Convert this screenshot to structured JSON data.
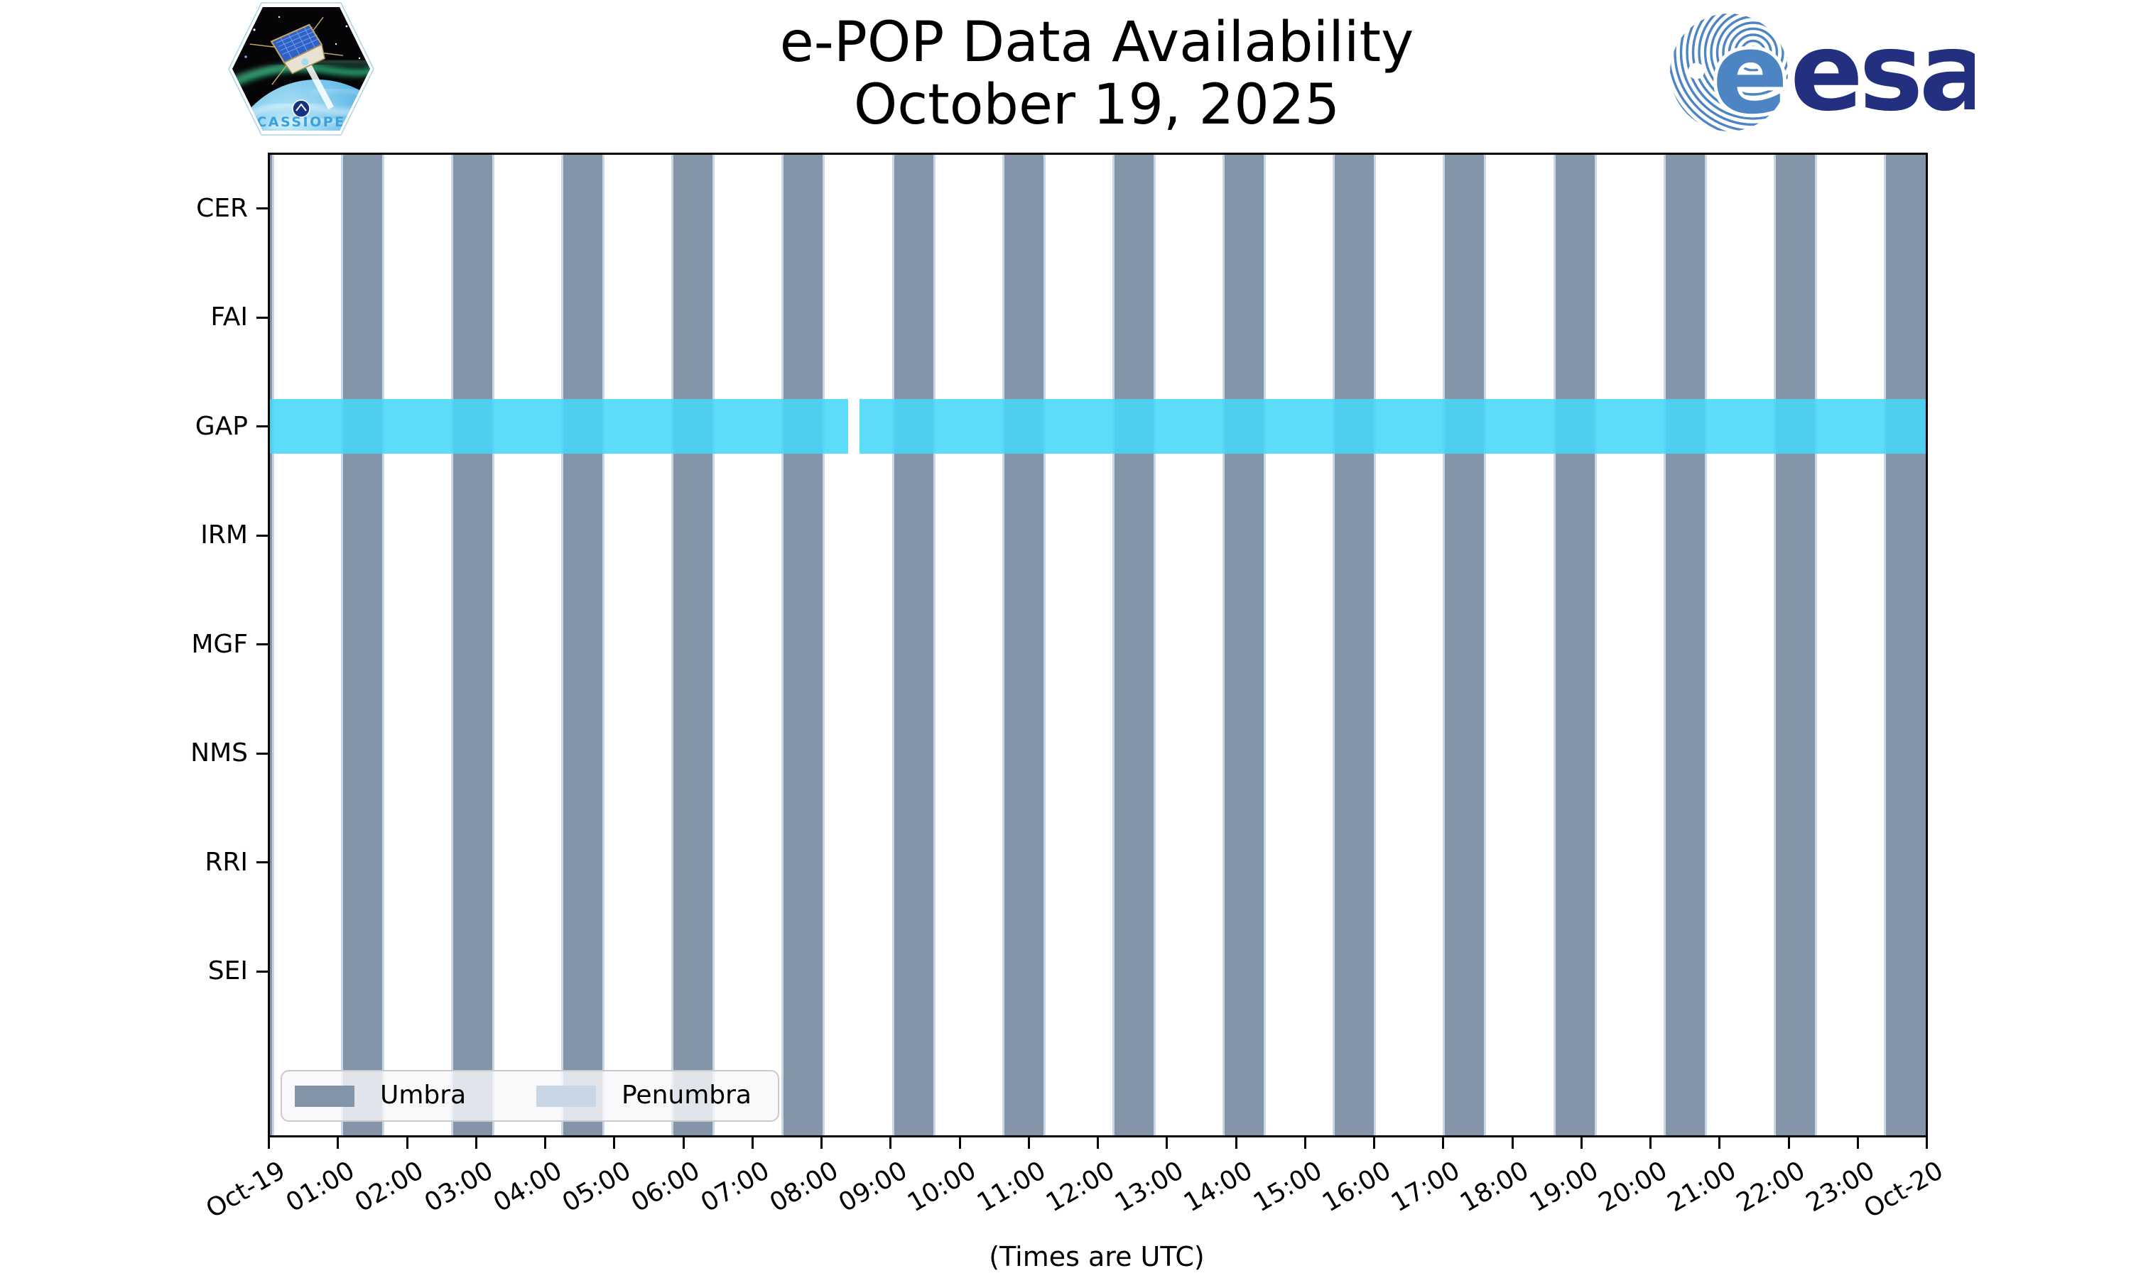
{
  "header": {
    "title_line1": "e-POP Data Availability",
    "title_line2": "October 19, 2025"
  },
  "logos": {
    "cassiope": "CASSIOPE",
    "esa": "esa"
  },
  "chart_data": {
    "type": "timeline",
    "title": "e-POP Data Availability",
    "subtitle": "October 19, 2025",
    "xlabel": "(Times are UTC)",
    "instruments": [
      "CER",
      "FAI",
      "GAP",
      "IRM",
      "MGF",
      "NMS",
      "RRI",
      "SEI"
    ],
    "x_tick_labels": [
      "Oct-19",
      "01:00",
      "02:00",
      "03:00",
      "04:00",
      "05:00",
      "06:00",
      "07:00",
      "08:00",
      "09:00",
      "10:00",
      "11:00",
      "12:00",
      "13:00",
      "14:00",
      "15:00",
      "16:00",
      "17:00",
      "18:00",
      "19:00",
      "20:00",
      "21:00",
      "22:00",
      "23:00",
      "Oct-20"
    ],
    "x_range_minutes": [
      0,
      1440
    ],
    "umbra": {
      "period_min": 95.85,
      "duration_min": 34,
      "intervals_min": [
        [
          0,
          1.7
        ],
        [
          63.5,
          97.5
        ],
        [
          159.4,
          193.4
        ],
        [
          255.2,
          289.2
        ],
        [
          351.1,
          385.1
        ],
        [
          446.9,
          480.9
        ],
        [
          542.8,
          576.8
        ],
        [
          638.6,
          672.6
        ],
        [
          734.5,
          768.5
        ],
        [
          830.3,
          864.3
        ],
        [
          926.2,
          960.2
        ],
        [
          1022.0,
          1056.0
        ],
        [
          1117.9,
          1151.9
        ],
        [
          1213.7,
          1247.7
        ],
        [
          1309.6,
          1343.6
        ],
        [
          1405.4,
          1440.0
        ]
      ],
      "intervals_hhmm": [
        [
          "00:00",
          "00:02"
        ],
        [
          "01:04",
          "01:38"
        ],
        [
          "02:39",
          "03:13"
        ],
        [
          "04:15",
          "04:49"
        ],
        [
          "05:51",
          "06:25"
        ],
        [
          "07:27",
          "08:01"
        ],
        [
          "09:03",
          "09:37"
        ],
        [
          "10:39",
          "11:13"
        ],
        [
          "12:14",
          "12:48"
        ],
        [
          "13:50",
          "14:24"
        ],
        [
          "15:26",
          "16:00"
        ],
        [
          "17:02",
          "17:36"
        ],
        [
          "18:38",
          "19:12"
        ],
        [
          "20:14",
          "20:48"
        ],
        [
          "21:50",
          "22:24"
        ],
        [
          "23:25",
          "24:00"
        ]
      ]
    },
    "penumbra_edge_width_min": 1.8,
    "availability": {
      "instrument": "GAP",
      "intervals_min": [
        [
          0,
          503
        ],
        [
          513,
          1440
        ]
      ],
      "intervals_hhmm": [
        [
          "00:00",
          "08:23"
        ],
        [
          "08:33",
          "24:00"
        ]
      ],
      "gap_hhmm": [
        "08:23",
        "08:33"
      ]
    },
    "legend": {
      "items": [
        {
          "label": "Umbra",
          "color": "#8595A9"
        },
        {
          "label": "Penumbra",
          "color": "#C9D6E5"
        }
      ]
    },
    "colors": {
      "umbra": "#8595A9",
      "penumbra": "#C9D6E5",
      "availability": "rgba(71,215,249,0.88)",
      "axis": "#000000"
    }
  }
}
